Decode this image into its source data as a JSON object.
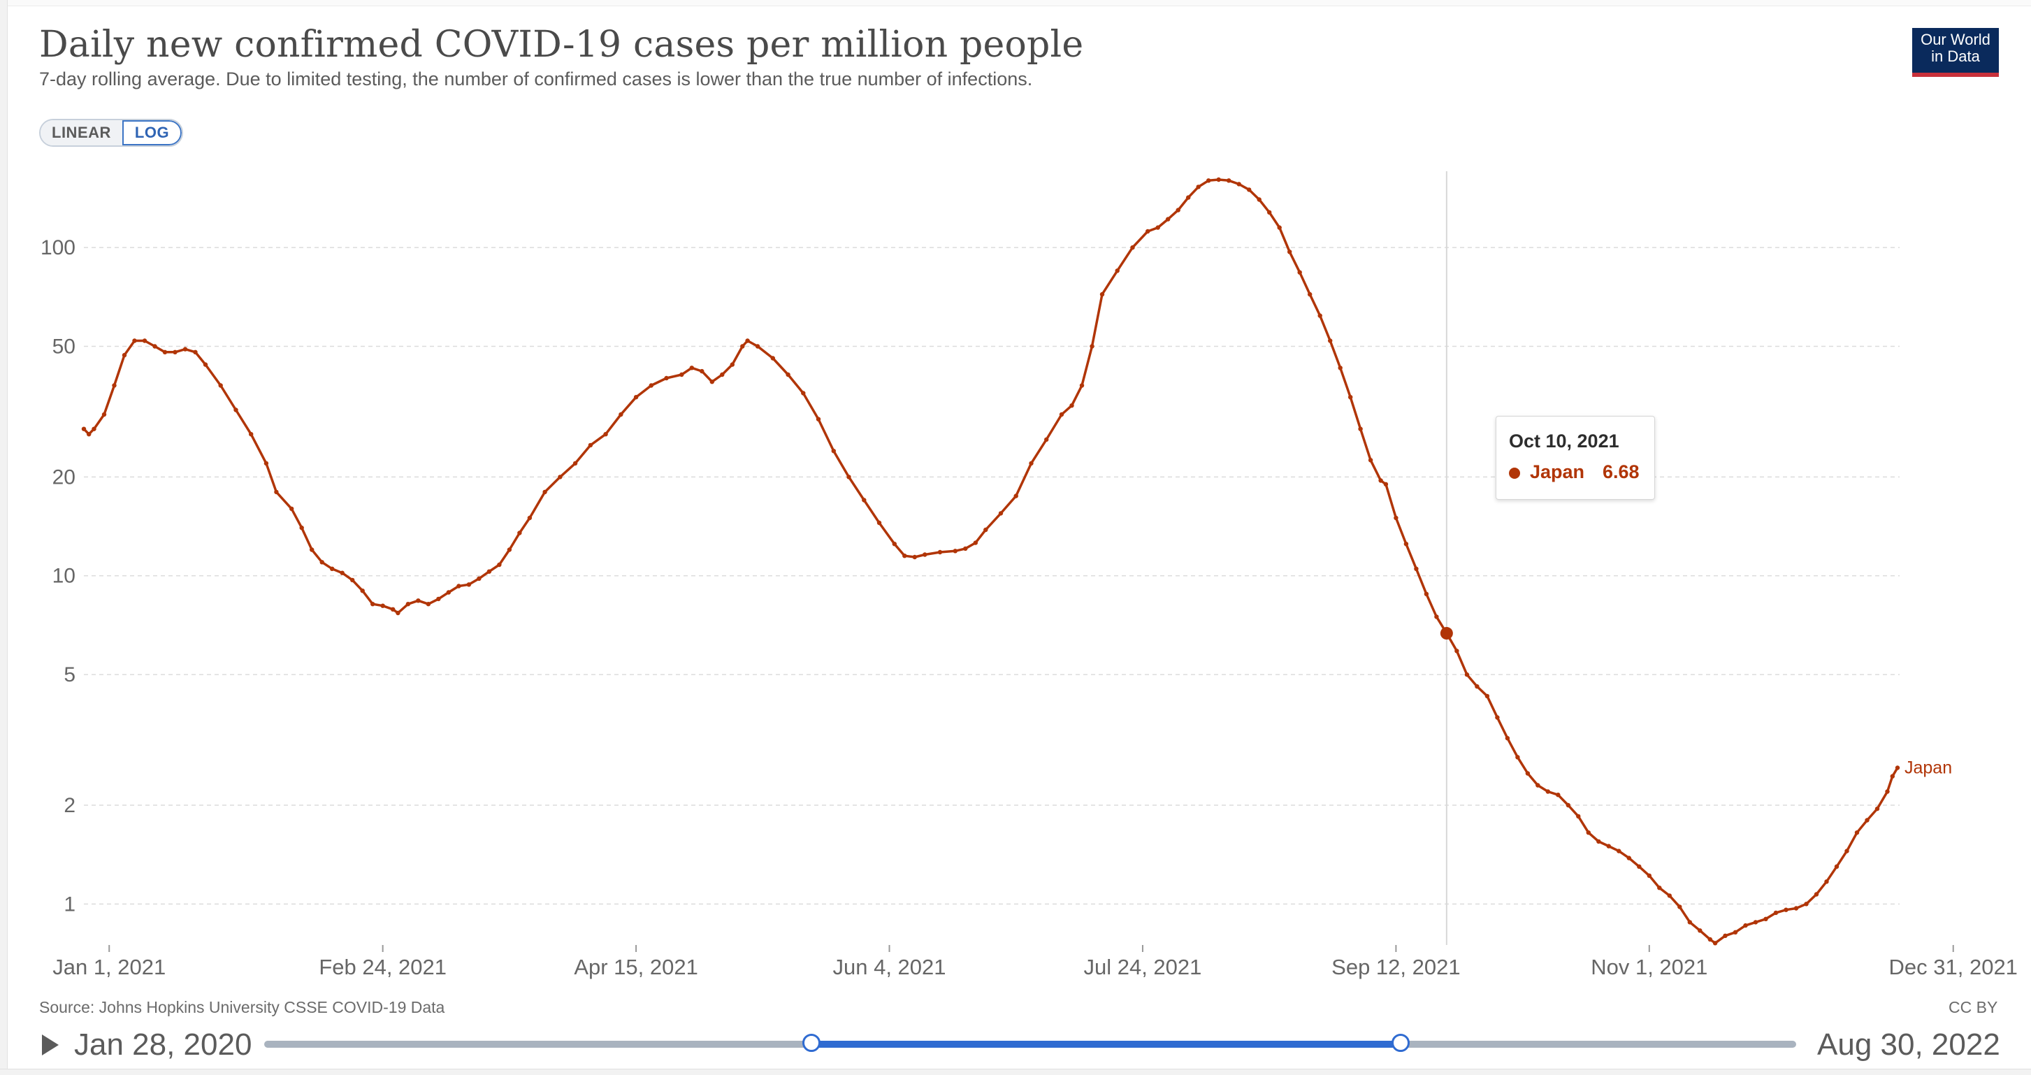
{
  "header": {
    "title": "Daily new confirmed COVID-19 cases per million people",
    "subtitle": "7-day rolling average. Due to limited testing, the number of confirmed cases is lower than the true number of infections.",
    "logo_line1": "Our World",
    "logo_line2": "in Data"
  },
  "scale_toggle": {
    "linear_label": "LINEAR",
    "log_label": "LOG",
    "selected": "LOG"
  },
  "colors": {
    "series": "#b13507",
    "grid": "#dcdcdc",
    "text": "#5b5b5b",
    "accent": "#2f6bd1"
  },
  "chart_data": {
    "type": "line",
    "title": "Daily new confirmed COVID-19 cases per million people",
    "xlabel": "",
    "ylabel": "",
    "yscale": "log",
    "ylim": [
      0.75,
      175
    ],
    "x_start": "2020-12-27",
    "x_end": "2022-01-01",
    "x_unit": "days since 2020-12-27",
    "y_ticks": [
      1,
      2,
      5,
      10,
      20,
      50,
      100
    ],
    "y_tick_labels": [
      "1",
      "2",
      "5",
      "10",
      "20",
      "50",
      "100"
    ],
    "x_ticks": [
      {
        "day": 5,
        "label": "Jan 1, 2021"
      },
      {
        "day": 59,
        "label": "Feb 24, 2021"
      },
      {
        "day": 109,
        "label": "Apr 15, 2021"
      },
      {
        "day": 159,
        "label": "Jun 4, 2021"
      },
      {
        "day": 209,
        "label": "Jul 24, 2021"
      },
      {
        "day": 259,
        "label": "Sep 12, 2021"
      },
      {
        "day": 309,
        "label": "Nov 1, 2021"
      },
      {
        "day": 369,
        "label": "Dec 31, 2021"
      }
    ],
    "series": [
      {
        "name": "Japan",
        "points": [
          [
            0,
            28
          ],
          [
            1,
            27
          ],
          [
            2,
            28
          ],
          [
            4,
            31
          ],
          [
            6,
            38
          ],
          [
            8,
            47
          ],
          [
            10,
            52
          ],
          [
            12,
            52
          ],
          [
            14,
            50
          ],
          [
            16,
            48
          ],
          [
            18,
            48
          ],
          [
            20,
            49
          ],
          [
            22,
            48
          ],
          [
            24,
            44
          ],
          [
            27,
            38
          ],
          [
            30,
            32
          ],
          [
            33,
            27
          ],
          [
            36,
            22
          ],
          [
            38,
            18
          ],
          [
            41,
            16
          ],
          [
            43,
            14
          ],
          [
            45,
            12
          ],
          [
            47,
            11
          ],
          [
            49,
            10.5
          ],
          [
            51,
            10.2
          ],
          [
            53,
            9.7
          ],
          [
            55,
            9.0
          ],
          [
            57,
            8.2
          ],
          [
            59,
            8.1
          ],
          [
            61,
            7.9
          ],
          [
            62,
            7.7
          ],
          [
            64,
            8.2
          ],
          [
            66,
            8.4
          ],
          [
            68,
            8.2
          ],
          [
            70,
            8.5
          ],
          [
            72,
            8.9
          ],
          [
            74,
            9.3
          ],
          [
            76,
            9.4
          ],
          [
            78,
            9.8
          ],
          [
            80,
            10.3
          ],
          [
            82,
            10.8
          ],
          [
            84,
            12
          ],
          [
            86,
            13.5
          ],
          [
            88,
            15
          ],
          [
            91,
            18
          ],
          [
            94,
            20
          ],
          [
            97,
            22
          ],
          [
            100,
            25
          ],
          [
            103,
            27
          ],
          [
            106,
            31
          ],
          [
            109,
            35
          ],
          [
            112,
            38
          ],
          [
            115,
            40
          ],
          [
            118,
            41
          ],
          [
            120,
            43
          ],
          [
            122,
            42
          ],
          [
            124,
            39
          ],
          [
            126,
            41
          ],
          [
            128,
            44
          ],
          [
            130,
            50
          ],
          [
            131,
            52
          ],
          [
            133,
            50
          ],
          [
            136,
            46
          ],
          [
            139,
            41
          ],
          [
            142,
            36
          ],
          [
            145,
            30
          ],
          [
            148,
            24
          ],
          [
            151,
            20
          ],
          [
            154,
            17
          ],
          [
            157,
            14.5
          ],
          [
            160,
            12.5
          ],
          [
            162,
            11.5
          ],
          [
            164,
            11.4
          ],
          [
            166,
            11.6
          ],
          [
            169,
            11.8
          ],
          [
            172,
            11.9
          ],
          [
            174,
            12.1
          ],
          [
            176,
            12.6
          ],
          [
            178,
            13.8
          ],
          [
            181,
            15.5
          ],
          [
            184,
            17.5
          ],
          [
            187,
            22
          ],
          [
            190,
            26
          ],
          [
            193,
            31
          ],
          [
            195,
            33
          ],
          [
            197,
            38
          ],
          [
            199,
            50
          ],
          [
            201,
            72
          ],
          [
            204,
            85
          ],
          [
            207,
            100
          ],
          [
            210,
            112
          ],
          [
            212,
            115
          ],
          [
            214,
            122
          ],
          [
            216,
            130
          ],
          [
            218,
            142
          ],
          [
            220,
            153
          ],
          [
            222,
            160
          ],
          [
            224,
            161
          ],
          [
            226,
            160
          ],
          [
            228,
            156
          ],
          [
            230,
            150
          ],
          [
            232,
            140
          ],
          [
            234,
            128
          ],
          [
            236,
            115
          ],
          [
            238,
            97
          ],
          [
            240,
            84
          ],
          [
            242,
            72
          ],
          [
            244,
            62
          ],
          [
            246,
            52
          ],
          [
            248,
            43
          ],
          [
            250,
            35
          ],
          [
            252,
            28
          ],
          [
            254,
            22.5
          ],
          [
            256,
            19.5
          ],
          [
            257,
            19.0
          ],
          [
            259,
            15.0
          ],
          [
            261,
            12.5
          ],
          [
            263,
            10.5
          ],
          [
            265,
            8.8
          ],
          [
            267,
            7.5
          ],
          [
            269,
            6.68
          ],
          [
            271,
            5.9
          ],
          [
            273,
            5.0
          ],
          [
            275,
            4.6
          ],
          [
            277,
            4.3
          ],
          [
            279,
            3.7
          ],
          [
            281,
            3.2
          ],
          [
            283,
            2.8
          ],
          [
            285,
            2.5
          ],
          [
            287,
            2.3
          ],
          [
            289,
            2.2
          ],
          [
            291,
            2.15
          ],
          [
            293,
            2.0
          ],
          [
            295,
            1.85
          ],
          [
            297,
            1.65
          ],
          [
            299,
            1.55
          ],
          [
            301,
            1.5
          ],
          [
            303,
            1.45
          ],
          [
            305,
            1.38
          ],
          [
            307,
            1.3
          ],
          [
            309,
            1.22
          ],
          [
            311,
            1.12
          ],
          [
            313,
            1.06
          ],
          [
            315,
            0.98
          ],
          [
            317,
            0.88
          ],
          [
            319,
            0.83
          ],
          [
            321,
            0.78
          ],
          [
            322,
            0.76
          ],
          [
            324,
            0.8
          ],
          [
            326,
            0.82
          ],
          [
            328,
            0.86
          ],
          [
            330,
            0.88
          ],
          [
            332,
            0.9
          ],
          [
            334,
            0.94
          ],
          [
            336,
            0.96
          ],
          [
            338,
            0.97
          ],
          [
            340,
            1.0
          ],
          [
            342,
            1.07
          ],
          [
            344,
            1.17
          ],
          [
            346,
            1.3
          ],
          [
            348,
            1.45
          ],
          [
            350,
            1.65
          ],
          [
            352,
            1.8
          ],
          [
            354,
            1.95
          ],
          [
            356,
            2.2
          ],
          [
            357,
            2.45
          ],
          [
            358,
            2.6
          ]
        ]
      }
    ],
    "series_label": "Japan",
    "hover": {
      "date": "Oct 10, 2021",
      "day": 269,
      "series": "Japan",
      "value": "6.68"
    }
  },
  "footer": {
    "source": "Source: Johns Hopkins University CSSE COVID-19 Data",
    "license": "CC BY"
  },
  "timeline": {
    "start_label": "Jan 28, 2020",
    "end_label": "Aug 30, 2022",
    "range_start": "2020-12-27",
    "range_end": "2022-01-01",
    "range_start_fraction": 0.357,
    "range_end_fraction": 0.742
  }
}
